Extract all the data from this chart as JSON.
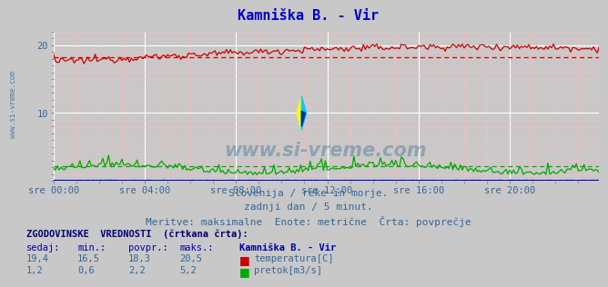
{
  "title": "Kamniška B. - Vir",
  "title_color": "#0000cc",
  "bg_color": "#c8c8c8",
  "plot_bg_color": "#c8c8c8",
  "xlim": [
    0,
    287
  ],
  "ylim": [
    0,
    22
  ],
  "yticks": [
    10,
    20
  ],
  "xtick_labels": [
    "sre 00:00",
    "sre 04:00",
    "sre 08:00",
    "sre 12:00",
    "sre 16:00",
    "sre 20:00"
  ],
  "xtick_positions": [
    0,
    48,
    96,
    144,
    192,
    240
  ],
  "temp_avg": 18.3,
  "temp_color": "#cc0000",
  "flow_avg": 2.2,
  "flow_color": "#00aa00",
  "height_color": "#0000ff",
  "watermark": "www.si-vreme.com",
  "watermark_color": "#1a5f8a",
  "info_line1": "Slovenija / reke in morje.",
  "info_line2": "zadnji dan / 5 minut.",
  "info_line3": "Meritve: maksimalne  Enote: metrične  Črta: povprečje",
  "info_color": "#336699",
  "table_header": "ZGODOVINSKE  VREDNOSTI  (črtkana črta):",
  "col_sedaj": "sedaj:",
  "col_min": "min.:",
  "col_povpr": "povpr.:",
  "col_maks": "maks.:",
  "col_station": "Kamniška B. - Vir",
  "temp_sedaj": "19,4",
  "temp_min": "16,5",
  "temp_povpr": "18,3",
  "temp_maks": "20,5",
  "flow_sedaj": "1,2",
  "flow_min": "0,6",
  "flow_povpr": "2,2",
  "flow_maks": "5,2",
  "label_temp": "temperatura[C]",
  "label_flow": "pretok[m3/s]",
  "sidebar_text": "www.si-vreme.com",
  "sidebar_color": "#336699"
}
